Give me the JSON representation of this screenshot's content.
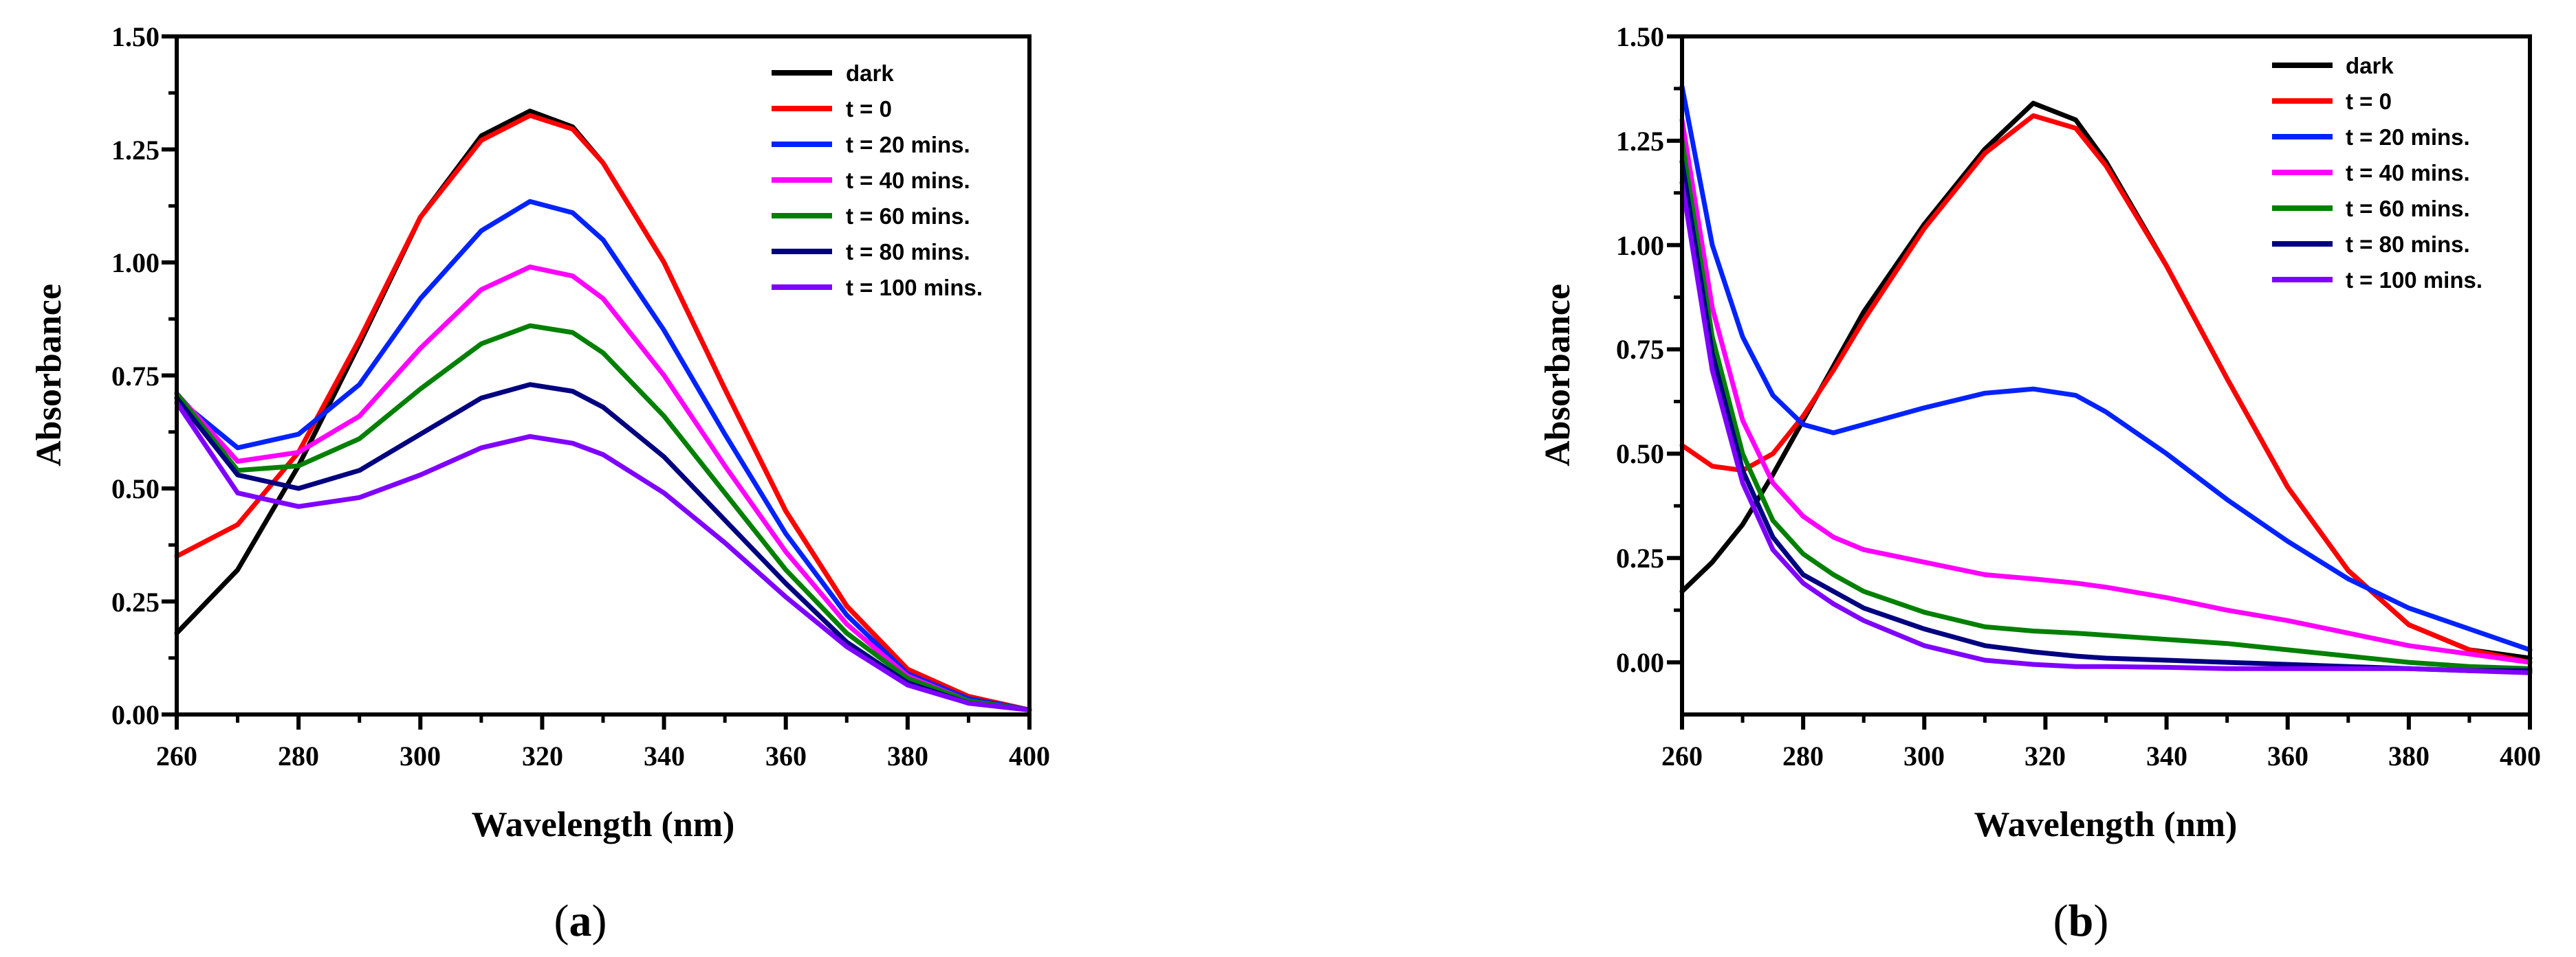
{
  "colors": {
    "dark": "#000000",
    "t0": "#ff0000",
    "t20": "#0022ff",
    "t40": "#ff00ff",
    "t60": "#008000",
    "t80": "#000080",
    "t100": "#8000ff"
  },
  "chart_data": [
    {
      "type": "line",
      "panel": "a",
      "panel_label": "a",
      "xlabel": "Wavelength (nm)",
      "ylabel": "Absorbance",
      "xlim": [
        260,
        400
      ],
      "ylim": [
        0,
        1.5
      ],
      "xticks": [
        "260",
        "280",
        "300",
        "320",
        "340",
        "360",
        "380",
        "400"
      ],
      "yticks": [
        "0.00",
        "0.25",
        "0.50",
        "0.75",
        "1.00",
        "1.25",
        "1.50"
      ],
      "legend_position": "top-right",
      "x": [
        260,
        270,
        280,
        290,
        300,
        310,
        318,
        325,
        330,
        340,
        350,
        360,
        370,
        380,
        390,
        400
      ],
      "series": [
        {
          "key": "dark",
          "name": "dark",
          "values": [
            0.18,
            0.32,
            0.55,
            0.82,
            1.1,
            1.28,
            1.335,
            1.3,
            1.22,
            1.0,
            0.72,
            0.45,
            0.24,
            0.1,
            0.04,
            0.01
          ]
        },
        {
          "key": "t0",
          "name": "t = 0",
          "values": [
            0.35,
            0.42,
            0.58,
            0.83,
            1.1,
            1.27,
            1.325,
            1.295,
            1.22,
            1.0,
            0.72,
            0.45,
            0.24,
            0.1,
            0.04,
            0.01
          ]
        },
        {
          "key": "t20",
          "name": "t = 20 mins.",
          "values": [
            0.7,
            0.59,
            0.62,
            0.73,
            0.92,
            1.07,
            1.135,
            1.11,
            1.05,
            0.85,
            0.62,
            0.4,
            0.22,
            0.09,
            0.035,
            0.01
          ]
        },
        {
          "key": "t40",
          "name": "t = 40 mins.",
          "values": [
            0.71,
            0.56,
            0.58,
            0.66,
            0.81,
            0.94,
            0.99,
            0.97,
            0.92,
            0.75,
            0.55,
            0.36,
            0.2,
            0.085,
            0.03,
            0.01
          ]
        },
        {
          "key": "t60",
          "name": "t = 60 mins.",
          "values": [
            0.71,
            0.54,
            0.55,
            0.61,
            0.72,
            0.82,
            0.86,
            0.845,
            0.8,
            0.66,
            0.49,
            0.32,
            0.18,
            0.08,
            0.03,
            0.01
          ]
        },
        {
          "key": "t80",
          "name": "t = 80 mins.",
          "values": [
            0.7,
            0.53,
            0.5,
            0.54,
            0.62,
            0.7,
            0.73,
            0.715,
            0.68,
            0.57,
            0.43,
            0.29,
            0.16,
            0.07,
            0.025,
            0.01
          ]
        },
        {
          "key": "t100",
          "name": "t = 100 mins.",
          "values": [
            0.69,
            0.49,
            0.46,
            0.48,
            0.53,
            0.59,
            0.615,
            0.6,
            0.575,
            0.49,
            0.38,
            0.26,
            0.15,
            0.065,
            0.025,
            0.01
          ]
        }
      ]
    },
    {
      "type": "line",
      "panel": "b",
      "panel_label": "b",
      "xlabel": "Wavelength (nm)",
      "ylabel": "Absorbance",
      "xlim": [
        260,
        400
      ],
      "ylim": [
        -0.125,
        1.5
      ],
      "xticks": [
        "260",
        "280",
        "300",
        "320",
        "340",
        "360",
        "380",
        "400"
      ],
      "yticks": [
        "0.00",
        "0.25",
        "0.50",
        "0.75",
        "1.00",
        "1.25",
        "1.50"
      ],
      "legend_position": "top-right",
      "x": [
        260,
        265,
        270,
        275,
        280,
        285,
        290,
        300,
        310,
        318,
        325,
        330,
        340,
        350,
        360,
        370,
        380,
        390,
        400
      ],
      "series": [
        {
          "key": "dark",
          "name": "dark",
          "values": [
            0.17,
            0.24,
            0.33,
            0.45,
            0.58,
            0.71,
            0.84,
            1.05,
            1.23,
            1.34,
            1.3,
            1.2,
            0.95,
            0.68,
            0.42,
            0.22,
            0.09,
            0.03,
            0.01
          ]
        },
        {
          "key": "t0",
          "name": "t = 0",
          "values": [
            0.52,
            0.47,
            0.46,
            0.5,
            0.59,
            0.7,
            0.82,
            1.04,
            1.22,
            1.31,
            1.28,
            1.19,
            0.95,
            0.68,
            0.42,
            0.22,
            0.09,
            0.03,
            0.0
          ]
        },
        {
          "key": "t20",
          "name": "t = 20 mins.",
          "values": [
            1.38,
            1.0,
            0.78,
            0.64,
            0.57,
            0.55,
            0.57,
            0.61,
            0.645,
            0.655,
            0.64,
            0.6,
            0.5,
            0.39,
            0.29,
            0.2,
            0.13,
            0.08,
            0.03
          ]
        },
        {
          "key": "t40",
          "name": "t = 40 mins.",
          "values": [
            1.3,
            0.85,
            0.58,
            0.43,
            0.35,
            0.3,
            0.27,
            0.24,
            0.21,
            0.2,
            0.19,
            0.18,
            0.155,
            0.125,
            0.1,
            0.07,
            0.04,
            0.02,
            0.0
          ]
        },
        {
          "key": "t60",
          "name": "t = 60 mins.",
          "values": [
            1.25,
            0.78,
            0.5,
            0.34,
            0.26,
            0.21,
            0.17,
            0.12,
            0.085,
            0.075,
            0.07,
            0.065,
            0.055,
            0.045,
            0.03,
            0.015,
            0.0,
            -0.01,
            -0.015
          ]
        },
        {
          "key": "t80",
          "name": "t = 80 mins.",
          "values": [
            1.2,
            0.74,
            0.46,
            0.3,
            0.21,
            0.17,
            0.13,
            0.08,
            0.04,
            0.025,
            0.015,
            0.01,
            0.005,
            0.0,
            -0.005,
            -0.01,
            -0.015,
            -0.02,
            -0.02
          ]
        },
        {
          "key": "t100",
          "name": "t = 100 mins.",
          "values": [
            1.15,
            0.7,
            0.43,
            0.27,
            0.19,
            0.14,
            0.1,
            0.04,
            0.005,
            -0.005,
            -0.01,
            -0.01,
            -0.012,
            -0.015,
            -0.015,
            -0.015,
            -0.015,
            -0.02,
            -0.025
          ]
        }
      ]
    }
  ]
}
